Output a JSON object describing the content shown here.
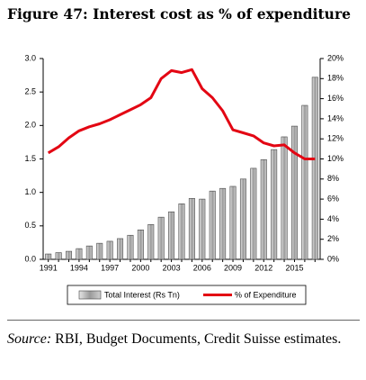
{
  "chart_data": {
    "type": "bar_line",
    "title": "Figure 47: Interest cost as % of expenditure",
    "categories": [
      "1991",
      null,
      null,
      "1994",
      null,
      null,
      "1997",
      null,
      null,
      "2000",
      null,
      null,
      "2003",
      null,
      null,
      "2006",
      null,
      null,
      "2009",
      null,
      null,
      "2012",
      null,
      null,
      "2015",
      null,
      null
    ],
    "series": [
      {
        "name": "Total Interest (Rs Tn)",
        "color": "#b4b4b4",
        "type": "bar",
        "values": [
          0.08,
          0.1,
          0.12,
          0.16,
          0.2,
          0.24,
          0.27,
          0.31,
          0.36,
          0.44,
          0.52,
          0.63,
          0.71,
          0.83,
          0.91,
          0.9,
          1.02,
          1.06,
          1.09,
          1.2,
          1.36,
          1.49,
          1.64,
          1.83,
          1.99,
          2.3,
          2.72
        ]
      },
      {
        "name": "% of Expenditure",
        "color": "#e30613",
        "type": "line",
        "axis": "y2",
        "values": [
          10.6,
          11.2,
          12.1,
          12.8,
          13.2,
          13.5,
          13.9,
          14.4,
          14.9,
          15.4,
          16.1,
          18.0,
          18.8,
          18.6,
          18.9,
          17.0,
          16.1,
          14.8,
          12.9,
          12.6,
          12.3,
          11.6,
          11.3,
          11.4,
          10.6,
          10.0,
          10.0
        ]
      }
    ],
    "ylim": [
      0,
      3
    ],
    "yticks": [
      {
        "value": 0,
        "label": "0.0"
      },
      0.5,
      {
        "value": 1,
        "label": "1.0"
      },
      1.5,
      {
        "value": 2,
        "label": "2.0"
      },
      2.5,
      {
        "value": 3,
        "label": "3.0"
      }
    ],
    "y2lim": [
      0,
      20
    ],
    "y2ticks": [
      {
        "value": 0,
        "label": "0%"
      },
      {
        "value": 2,
        "label": "2%"
      },
      {
        "value": 4,
        "label": "4%"
      },
      {
        "value": 6,
        "label": "6%"
      },
      {
        "value": 8,
        "label": "8%"
      },
      {
        "value": 10,
        "label": "10%"
      },
      {
        "value": 12,
        "label": "12%"
      },
      {
        "value": 14,
        "label": "14%"
      },
      {
        "value": 16,
        "label": "16%"
      },
      {
        "value": 18,
        "label": "18%"
      },
      {
        "value": 20,
        "label": "20%"
      }
    ],
    "legend": "bottom",
    "source_label": "Source:",
    "source": "RBI, Budget Documents, Credit Suisse estimates."
  }
}
